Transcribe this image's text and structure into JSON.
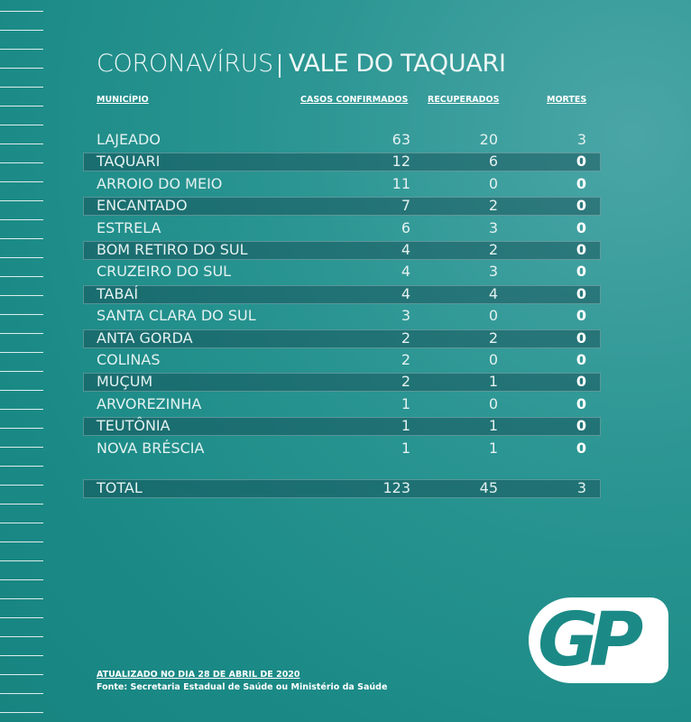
{
  "header": {
    "title_left": "CORONAVÍRUS",
    "title_right": "VALE DO TAQUARI"
  },
  "table": {
    "columns": [
      "MUNICÍPIO",
      "CASOS CONFIRMADOS",
      "RECUPERADOS",
      "MORTES"
    ],
    "rows": [
      [
        "LAJEADO",
        63,
        20,
        3
      ],
      [
        "TAQUARI",
        12,
        6,
        0
      ],
      [
        "ARROIO DO MEIO",
        11,
        0,
        0
      ],
      [
        "ENCANTADO",
        7,
        2,
        0
      ],
      [
        "ESTRELA",
        6,
        3,
        0
      ],
      [
        "BOM RETIRO DO SUL",
        4,
        2,
        0
      ],
      [
        "CRUZEIRO DO SUL",
        4,
        3,
        0
      ],
      [
        "TABAÍ",
        4,
        4,
        0
      ],
      [
        "SANTA CLARA DO SUL",
        3,
        0,
        0
      ],
      [
        "ANTA GORDA",
        2,
        2,
        0
      ],
      [
        "COLINAS",
        2,
        0,
        0
      ],
      [
        "MUÇUM",
        2,
        1,
        0
      ],
      [
        "ARVOREZINHA",
        1,
        0,
        0
      ],
      [
        "TEUTÔNIA",
        1,
        1,
        0
      ],
      [
        "NOVA BRÉSCIA",
        1,
        1,
        0
      ]
    ],
    "total": [
      "TOTAL",
      123,
      45,
      3
    ]
  },
  "footer": {
    "updated": "ATUALIZADO NO DIA 28 DE ABRIL DE 2020",
    "source": "Fonte: Secretaria Estadual de Saúde ou Ministério da Saúde"
  },
  "logo": "GP"
}
